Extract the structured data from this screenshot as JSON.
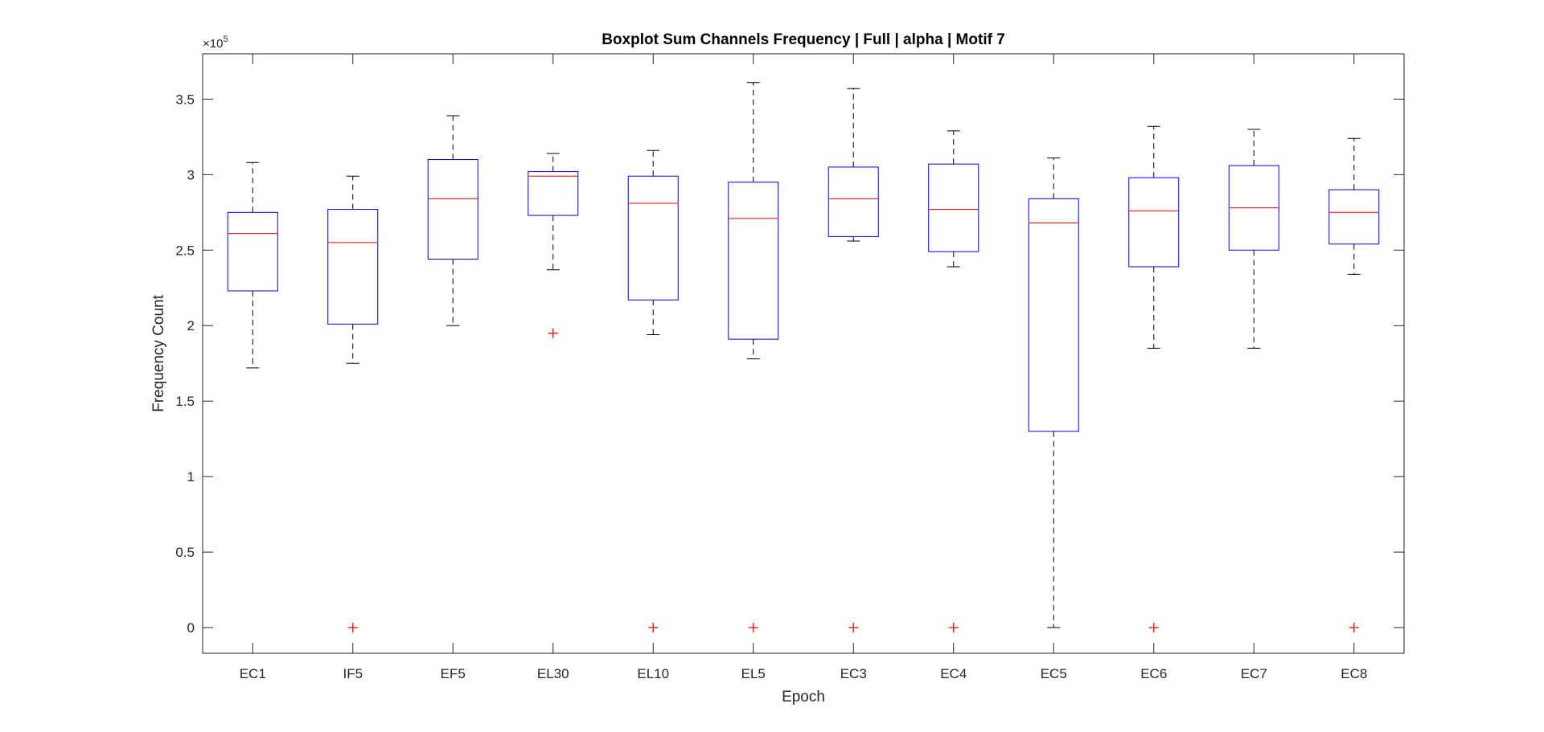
{
  "chart_data": {
    "type": "boxplot",
    "title": "Boxplot Sum Channels Frequency | Full | alpha | Motif 7",
    "xlabel": "Epoch",
    "ylabel": "Frequency Count",
    "y_exponent_label": "×10",
    "y_exponent_power": "5",
    "ylim": [
      -0.17,
      3.8
    ],
    "y_scale_factor": 100000,
    "yticks": [
      0,
      0.5,
      1,
      1.5,
      2,
      2.5,
      3,
      3.5
    ],
    "ytick_labels": [
      "0",
      "0.5",
      "1",
      "1.5",
      "2",
      "2.5",
      "3",
      "3.5"
    ],
    "grid": false,
    "categories": [
      "EC1",
      "IF5",
      "EF5",
      "EL30",
      "EL10",
      "EL5",
      "EC3",
      "EC4",
      "EC5",
      "EC6",
      "EC7",
      "EC8"
    ],
    "boxes": [
      {
        "whisker_low": 1.72,
        "q1": 2.23,
        "median": 2.61,
        "q3": 2.75,
        "whisker_high": 3.08,
        "outliers": []
      },
      {
        "whisker_low": 1.75,
        "q1": 2.01,
        "median": 2.55,
        "q3": 2.77,
        "whisker_high": 2.99,
        "outliers": [
          0
        ]
      },
      {
        "whisker_low": 2.0,
        "q1": 2.44,
        "median": 2.84,
        "q3": 3.1,
        "whisker_high": 3.39,
        "outliers": []
      },
      {
        "whisker_low": 2.37,
        "q1": 2.73,
        "median": 2.99,
        "q3": 3.02,
        "whisker_high": 3.14,
        "outliers": [
          1.95
        ]
      },
      {
        "whisker_low": 1.94,
        "q1": 2.17,
        "median": 2.81,
        "q3": 2.99,
        "whisker_high": 3.16,
        "outliers": [
          0
        ]
      },
      {
        "whisker_low": 1.78,
        "q1": 1.91,
        "median": 2.71,
        "q3": 2.95,
        "whisker_high": 3.61,
        "outliers": [
          0
        ]
      },
      {
        "whisker_low": 2.56,
        "q1": 2.59,
        "median": 2.84,
        "q3": 3.05,
        "whisker_high": 3.57,
        "outliers": [
          0
        ]
      },
      {
        "whisker_low": 2.39,
        "q1": 2.49,
        "median": 2.77,
        "q3": 3.07,
        "whisker_high": 3.29,
        "outliers": [
          0
        ]
      },
      {
        "whisker_low": 0.0,
        "q1": 1.3,
        "median": 2.68,
        "q3": 2.84,
        "whisker_high": 3.11,
        "outliers": []
      },
      {
        "whisker_low": 1.85,
        "q1": 2.39,
        "median": 2.76,
        "q3": 2.98,
        "whisker_high": 3.32,
        "outliers": [
          0
        ]
      },
      {
        "whisker_low": 1.85,
        "q1": 2.5,
        "median": 2.78,
        "q3": 3.06,
        "whisker_high": 3.3,
        "outliers": []
      },
      {
        "whisker_low": 2.34,
        "q1": 2.54,
        "median": 2.75,
        "q3": 2.9,
        "whisker_high": 3.24,
        "outliers": [
          0
        ]
      }
    ],
    "colors": {
      "box": "#0000ff",
      "median": "#ff0000",
      "whisker": "#000000",
      "outlier": "#ff0000",
      "axis": "#262626"
    }
  }
}
